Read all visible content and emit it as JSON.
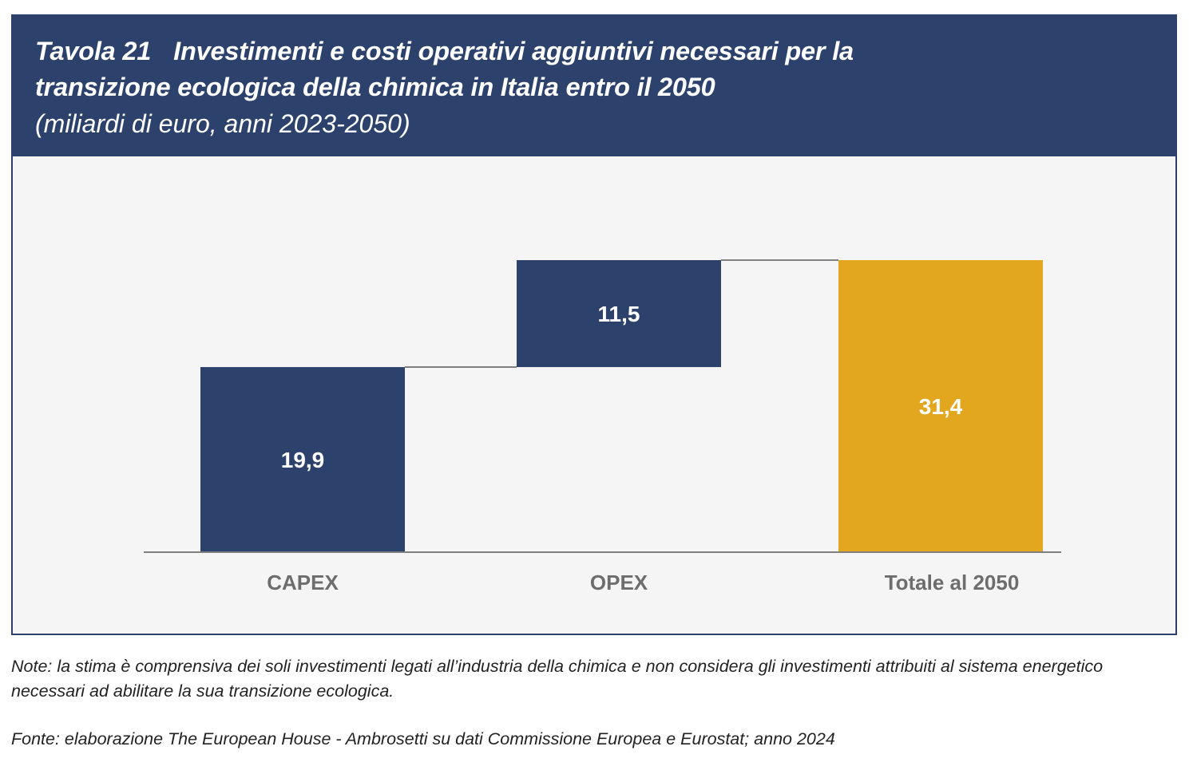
{
  "header": {
    "table_number": "Tavola 21",
    "title_line1": "Investimenti e costi operativi aggiuntivi necessari per la",
    "title_line2": "transizione ecologica della chimica in Italia entro il 2050",
    "subtitle": "(miliardi di euro, anni 2023-2050)"
  },
  "colors": {
    "navy": "#2c426c",
    "gold": "#e2a71e",
    "panel": "#f5f5f5",
    "axis": "#7f7f7f",
    "label": "#6d6d6d"
  },
  "chart_data": {
    "type": "bar",
    "subtype": "waterfall",
    "title": "Investimenti e costi operativi aggiuntivi necessari per la transizione ecologica della chimica in Italia entro il 2050",
    "subtitle": "(miliardi di euro, anni 2023-2050)",
    "xlabel": "",
    "ylabel": "",
    "categories": [
      "CAPEX",
      "OPEX",
      "Totale al 2050"
    ],
    "values": [
      19.9,
      11.5,
      31.4
    ],
    "bases": [
      0,
      19.9,
      0
    ],
    "labels": [
      "19,9",
      "11,5",
      "31,4"
    ],
    "bar_colors": [
      "#2c426c",
      "#2c426c",
      "#e2a71e"
    ],
    "ylim": [
      0,
      31.4
    ],
    "grid": false,
    "legend": "none"
  },
  "footer": {
    "note": "Note: la stima è comprensiva dei soli investimenti legati all’industria della chimica e non considera gli investimenti attribuiti al sistema energetico necessari ad abilitare la sua transizione ecologica.",
    "source": "Fonte: elaborazione The European House - Ambrosetti su dati Commissione Europea e Eurostat; anno 2024"
  }
}
